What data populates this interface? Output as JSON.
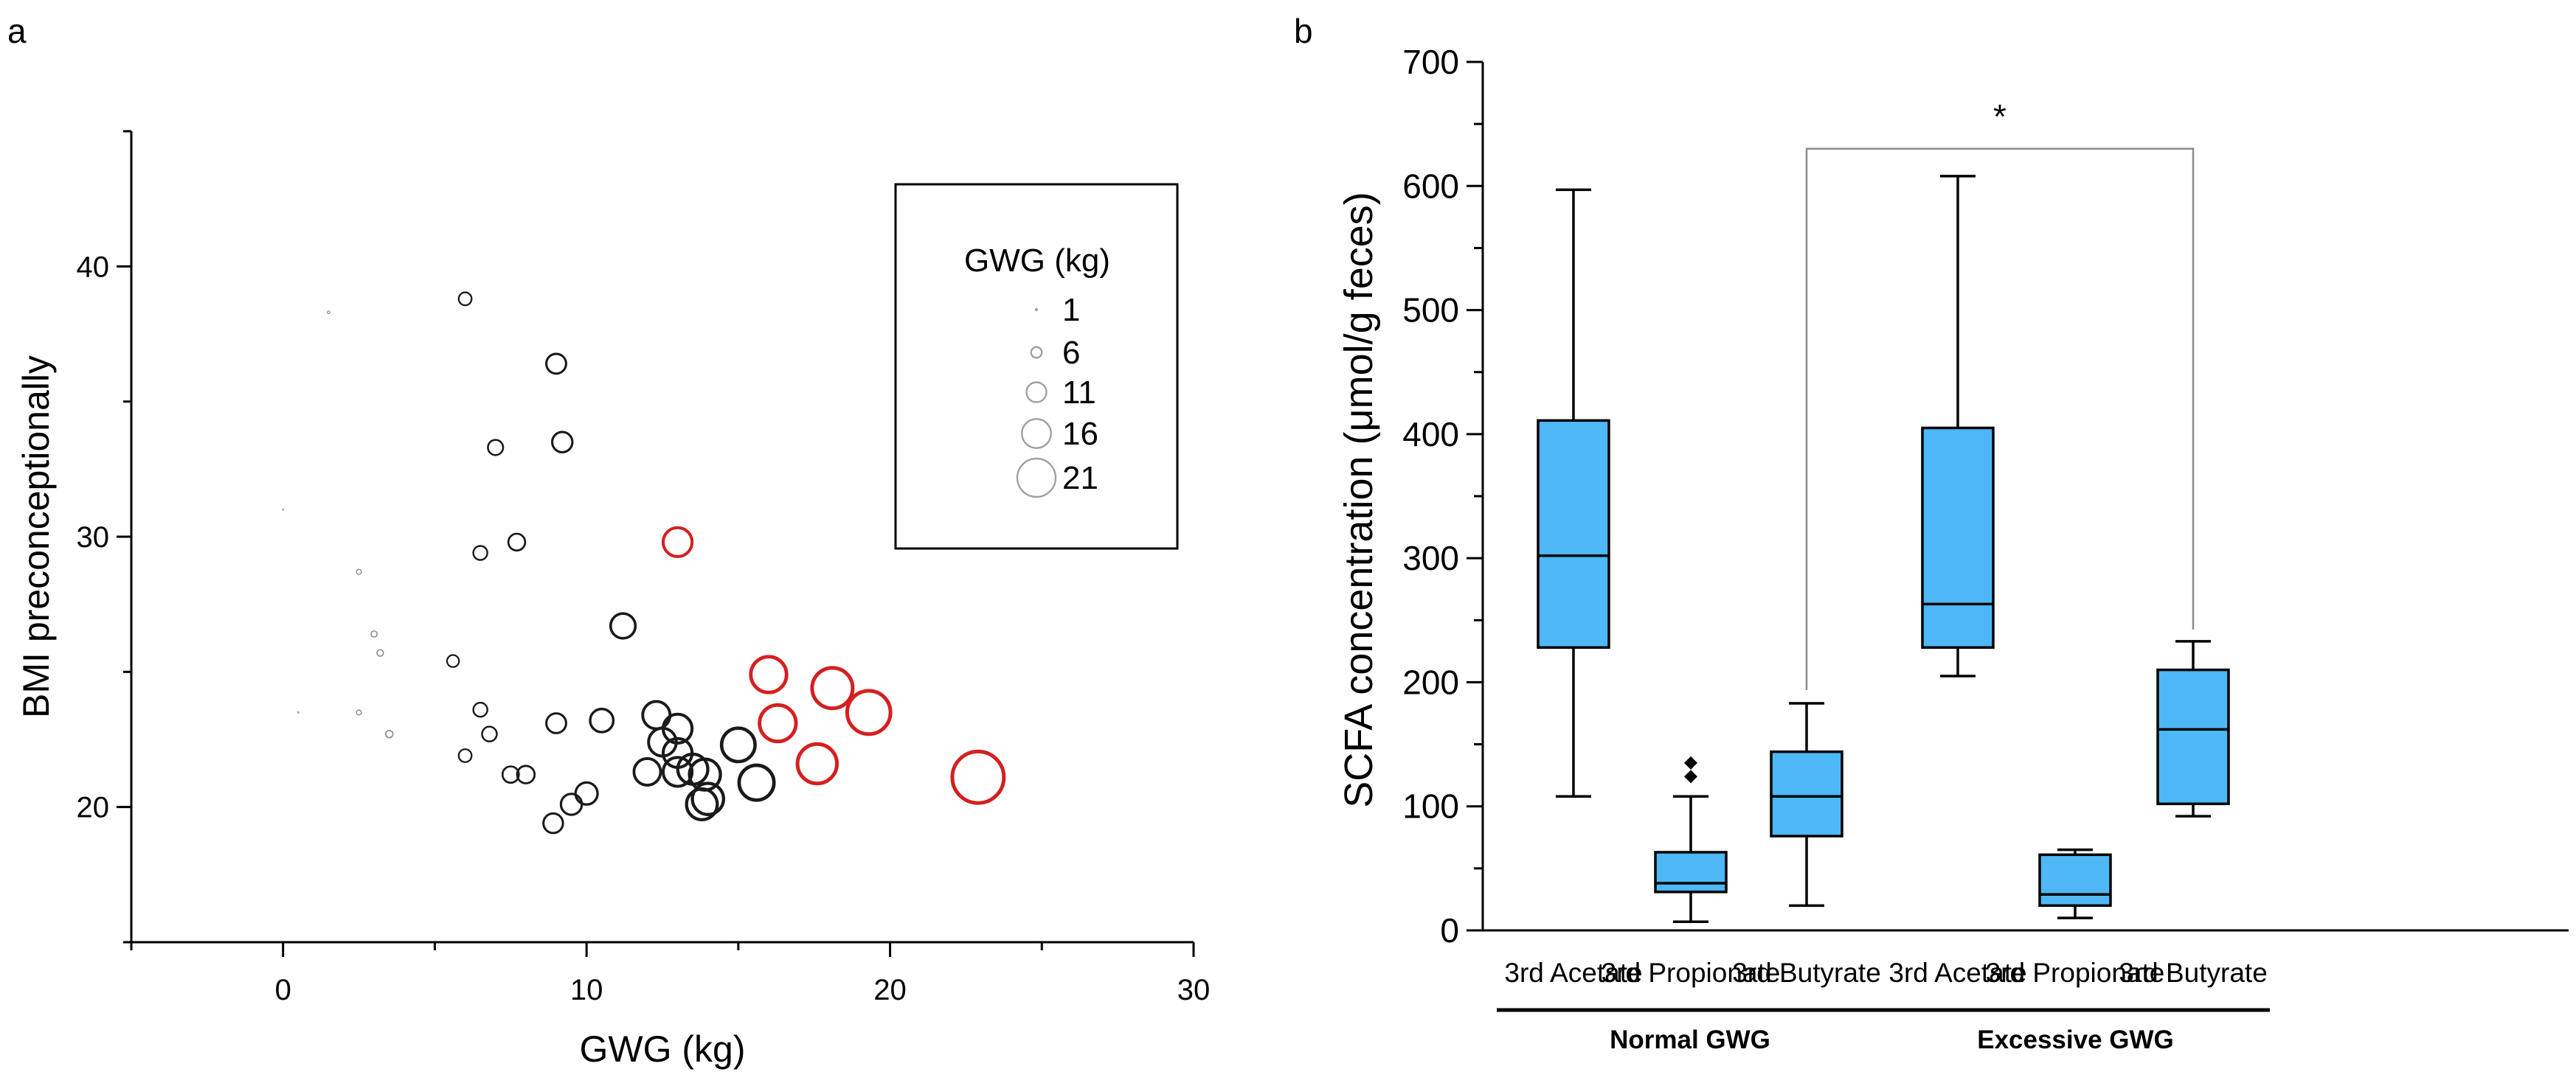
{
  "panels": {
    "a": "a",
    "b": "b"
  },
  "chart_data": [
    {
      "type": "scatter",
      "xlabel": "GWG (kg)",
      "ylabel": "BMI preconceptionally",
      "xlim": [
        -5,
        30
      ],
      "ylim": [
        15,
        45
      ],
      "xticks": [
        "0",
        "10",
        "20",
        "30"
      ],
      "xtick_values": [
        0,
        10,
        20,
        30
      ],
      "yticks": [
        "20",
        "30",
        "40"
      ],
      "ytick_values": [
        20,
        30,
        40
      ],
      "grid": false,
      "legend": {
        "placement": "top-right",
        "title": "GWG (kg)",
        "entries": [
          "1",
          "6",
          "11",
          "16",
          "21"
        ],
        "entry_values": [
          1,
          6,
          11,
          16,
          21
        ]
      },
      "colors": {
        "normal": "#1a1a1a",
        "excessive": "#d42020"
      },
      "points": [
        {
          "x": 0.0,
          "y": 31.0,
          "group": "normal"
        },
        {
          "x": 0.5,
          "y": 23.5,
          "group": "normal"
        },
        {
          "x": 1.5,
          "y": 38.3,
          "group": "normal"
        },
        {
          "x": 2.5,
          "y": 28.7,
          "group": "normal"
        },
        {
          "x": 2.5,
          "y": 23.5,
          "group": "normal"
        },
        {
          "x": 3.0,
          "y": 26.4,
          "group": "normal"
        },
        {
          "x": 3.2,
          "y": 25.7,
          "group": "normal"
        },
        {
          "x": 3.5,
          "y": 22.7,
          "group": "normal"
        },
        {
          "x": 5.6,
          "y": 25.4,
          "group": "normal"
        },
        {
          "x": 6.0,
          "y": 38.8,
          "group": "normal"
        },
        {
          "x": 6.0,
          "y": 21.9,
          "group": "normal"
        },
        {
          "x": 6.5,
          "y": 29.4,
          "group": "normal"
        },
        {
          "x": 6.5,
          "y": 23.6,
          "group": "normal"
        },
        {
          "x": 6.8,
          "y": 22.7,
          "group": "normal"
        },
        {
          "x": 7.0,
          "y": 33.3,
          "group": "normal"
        },
        {
          "x": 7.5,
          "y": 21.2,
          "group": "normal"
        },
        {
          "x": 7.7,
          "y": 29.8,
          "group": "normal"
        },
        {
          "x": 8.0,
          "y": 21.2,
          "group": "normal"
        },
        {
          "x": 8.9,
          "y": 19.4,
          "group": "normal"
        },
        {
          "x": 9.0,
          "y": 36.4,
          "group": "normal"
        },
        {
          "x": 9.0,
          "y": 23.1,
          "group": "normal"
        },
        {
          "x": 9.2,
          "y": 33.5,
          "group": "normal"
        },
        {
          "x": 9.5,
          "y": 20.1,
          "group": "normal"
        },
        {
          "x": 10.0,
          "y": 20.5,
          "group": "normal"
        },
        {
          "x": 10.5,
          "y": 23.2,
          "group": "normal"
        },
        {
          "x": 11.2,
          "y": 26.7,
          "group": "normal"
        },
        {
          "x": 12.0,
          "y": 21.3,
          "group": "normal"
        },
        {
          "x": 12.3,
          "y": 23.4,
          "group": "normal"
        },
        {
          "x": 12.5,
          "y": 22.4,
          "group": "normal"
        },
        {
          "x": 13.0,
          "y": 22.9,
          "group": "normal"
        },
        {
          "x": 13.0,
          "y": 22.0,
          "group": "normal"
        },
        {
          "x": 13.0,
          "y": 21.3,
          "group": "normal"
        },
        {
          "x": 13.5,
          "y": 21.4,
          "group": "normal"
        },
        {
          "x": 13.8,
          "y": 20.1,
          "group": "normal"
        },
        {
          "x": 13.9,
          "y": 21.2,
          "group": "normal"
        },
        {
          "x": 14.0,
          "y": 20.3,
          "group": "normal"
        },
        {
          "x": 15.0,
          "y": 22.3,
          "group": "normal"
        },
        {
          "x": 15.6,
          "y": 20.9,
          "group": "normal"
        },
        {
          "x": 13.0,
          "y": 29.8,
          "group": "excessive"
        },
        {
          "x": 16.0,
          "y": 24.9,
          "group": "excessive"
        },
        {
          "x": 16.3,
          "y": 23.1,
          "group": "excessive"
        },
        {
          "x": 17.6,
          "y": 21.6,
          "group": "excessive"
        },
        {
          "x": 18.1,
          "y": 24.4,
          "group": "excessive"
        },
        {
          "x": 19.3,
          "y": 23.5,
          "group": "excessive"
        },
        {
          "x": 22.9,
          "y": 21.1,
          "group": "excessive"
        }
      ]
    },
    {
      "type": "box",
      "ylabel": "SCFA concentration (μmol/g feces)",
      "ylim": [
        0,
        700
      ],
      "yticks": [
        "0",
        "100",
        "200",
        "300",
        "400",
        "500",
        "600",
        "700"
      ],
      "ytick_values": [
        0,
        100,
        200,
        300,
        400,
        500,
        600,
        700
      ],
      "grid": false,
      "box_color": "#4db8f5",
      "categories": [
        "3rd Acetate",
        "3rd Propionate",
        "3rd Butyrate",
        "3rd Acetate",
        "3rd Propionate",
        "3rd Butyrate"
      ],
      "groups": [
        {
          "name": "Normal GWG",
          "members": [
            0,
            1,
            2
          ]
        },
        {
          "name": "Excessive GWG",
          "members": [
            3,
            4,
            5
          ]
        }
      ],
      "boxes": [
        {
          "min": 108,
          "q1": 228,
          "median": 302,
          "q3": 411,
          "max": 597,
          "outliers": []
        },
        {
          "min": 7,
          "q1": 31,
          "median": 38,
          "q3": 63,
          "max": 108,
          "outliers": [
            124,
            135
          ]
        },
        {
          "min": 20,
          "q1": 76,
          "median": 108,
          "q3": 144,
          "max": 183,
          "outliers": []
        },
        {
          "min": 205,
          "q1": 228,
          "median": 263,
          "q3": 405,
          "max": 608,
          "outliers": []
        },
        {
          "min": 10,
          "q1": 20,
          "median": 29,
          "q3": 61,
          "max": 65,
          "outliers": []
        },
        {
          "min": 92,
          "q1": 102,
          "median": 162,
          "q3": 210,
          "max": 233,
          "outliers": []
        }
      ],
      "annotations": [
        {
          "text": "*",
          "type": "significance-bracket",
          "from": 2,
          "to": 5,
          "y": 630
        }
      ]
    }
  ]
}
